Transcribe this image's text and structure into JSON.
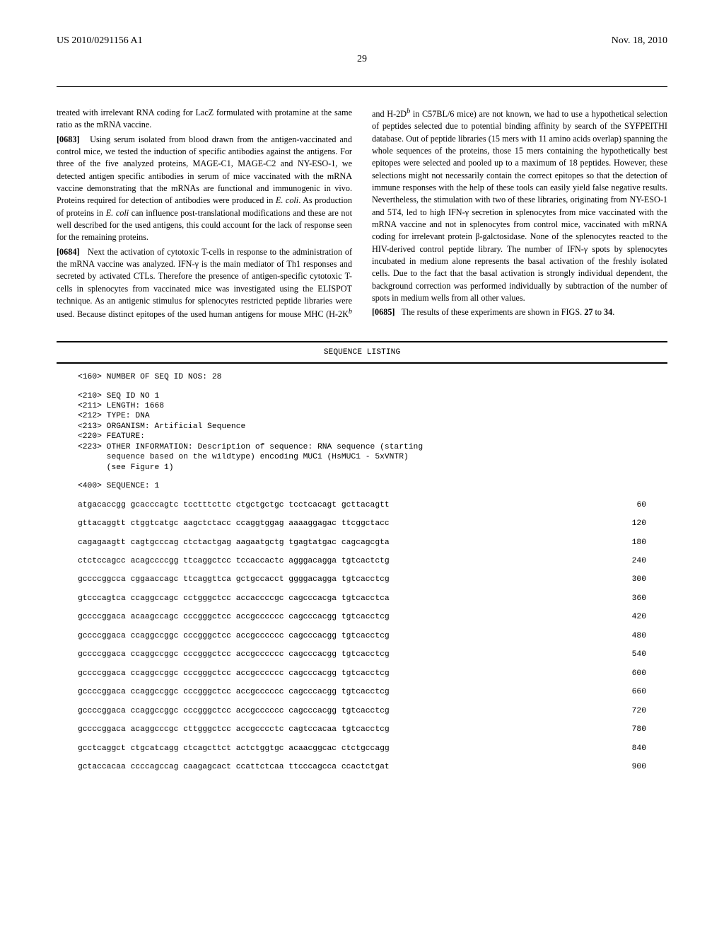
{
  "header": {
    "left": "US 2010/0291156 A1",
    "right": "Nov. 18, 2010",
    "page_number": "29"
  },
  "body": {
    "p0": "treated with irrelevant RNA coding for LacZ formulated with protamine at the same ratio as the mRNA vaccine.",
    "p1_num": "[0683]",
    "p1": "Using serum isolated from blood drawn from the antigen-vaccinated and control mice, we tested the induction of specific antibodies against the antigens. For three of the five analyzed proteins, MAGE-C1, MAGE-C2 and NY-ESO-1, we detected antigen specific antibodies in serum of mice vaccinated with the mRNA vaccine demonstrating that the mRNAs are functional and immunogenic in vivo. Proteins required for detection of antibodies were produced in ",
    "p1b": ". As production of proteins in ",
    "p1c": " can influence post-translational modifications and these are not well described for the used antigens, this could account for the lack of response seen for the remaining proteins.",
    "ecoli": "E. coli",
    "p2_num": "[0684]",
    "p2": "Next the activation of cytotoxic T-cells in response to the administration of the mRNA vaccine was analyzed. IFN-γ is the main mediator of Th1 responses and secreted by activated CTLs. Therefore the presence of antigen-specific cytotoxic T-cells in splenocytes from vaccinated mice was investigated using the ELISPOT technique. As an antigenic stimulus for splenocytes restricted peptide libraries were used. Because distinct epitopes of the used human antigens for mouse MHC (H-2K",
    "p2_sup1": "b",
    "p2b": " and H-2D",
    "p2_sup2": "b",
    "p2c": " in C57BL/6 mice) are not known, we had to use a hypothetical selection of peptides selected due to potential binding affinity by search of the SYFPEITHI database. Out of peptide libraries (15 mers with 11 amino acids overlap) spanning the whole sequences of the proteins, those 15 mers containing the hypothetically best epitopes were selected and pooled up to a maximum of 18 peptides. However, these selections might not necessarily contain the correct epitopes so that the detection of immune responses with the help of these tools can easily yield false negative results. Nevertheless, the stimulation with two of these libraries, originating from NY-ESO-1 and 5T4, led to high IFN-γ secretion in splenocytes from mice vaccinated with the mRNA vaccine and not in splenocytes from control mice, vaccinated with mRNA coding for irrelevant protein β-galctosidase. None of the splenocytes reacted to the HIV-derived control peptide library. The number of IFN-γ spots by splenocytes incubated in medium alone represents the basal activation of the freshly isolated cells. Due to the fact that the basal activation is strongly individual dependent, the background correction was performed individually by subtraction of the number of spots in medium wells from all other values.",
    "p3_num": "[0685]",
    "p3a": "The results of these experiments are shown in FIGS. ",
    "p3b": "27",
    "p3c": " to ",
    "p3d": "34",
    "p3e": "."
  },
  "seq": {
    "title": "SEQUENCE LISTING",
    "h160": "<160> NUMBER OF SEQ ID NOS: 28",
    "h210": "<210> SEQ ID NO 1",
    "h211": "<211> LENGTH: 1668",
    "h212": "<212> TYPE: DNA",
    "h213": "<213> ORGANISM: Artificial Sequence",
    "h220": "<220> FEATURE:",
    "h223": "<223> OTHER INFORMATION: Description of sequence: RNA sequence (starting",
    "h223b": "      sequence based on the wildtype) encoding MUC1 (HsMUC1 - 5xVNTR)",
    "h223c": "      (see Figure 1)",
    "h400": "<400> SEQUENCE: 1",
    "rows": [
      {
        "seq": "atgacaccgg gcacccagtc tcctttcttc ctgctgctgc tcctcacagt gcttacagtt",
        "n": "60"
      },
      {
        "seq": "gttacaggtt ctggtcatgc aagctctacc ccaggtggag aaaaggagac ttcggctacc",
        "n": "120"
      },
      {
        "seq": "cagagaagtt cagtgcccag ctctactgag aagaatgctg tgagtatgac cagcagcgta",
        "n": "180"
      },
      {
        "seq": "ctctccagcc acagccccgg ttcaggctcc tccaccactc agggacagga tgtcactctg",
        "n": "240"
      },
      {
        "seq": "gccccggcca cggaaccagc ttcaggttca gctgccacct ggggacagga tgtcacctcg",
        "n": "300"
      },
      {
        "seq": "gtcccagtca ccaggccagc cctgggctcc accaccccgc cagcccacga tgtcacctca",
        "n": "360"
      },
      {
        "seq": "gccccggaca acaagccagc cccgggctcc accgcccccc cagcccacgg tgtcacctcg",
        "n": "420"
      },
      {
        "seq": "gccccggaca ccaggccggc cccgggctcc accgcccccc cagcccacgg tgtcacctcg",
        "n": "480"
      },
      {
        "seq": "gccccggaca ccaggccggc cccgggctcc accgcccccc cagcccacgg tgtcacctcg",
        "n": "540"
      },
      {
        "seq": "gccccggaca ccaggccggc cccgggctcc accgcccccc cagcccacgg tgtcacctcg",
        "n": "600"
      },
      {
        "seq": "gccccggaca ccaggccggc cccgggctcc accgcccccc cagcccacgg tgtcacctcg",
        "n": "660"
      },
      {
        "seq": "gccccggaca ccaggccggc cccgggctcc accgcccccc cagcccacgg tgtcacctcg",
        "n": "720"
      },
      {
        "seq": "gccccggaca acaggcccgc cttgggctcc accgcccctc cagtccacaa tgtcacctcg",
        "n": "780"
      },
      {
        "seq": "gcctcaggct ctgcatcagg ctcagcttct actctggtgc acaacggcac ctctgccagg",
        "n": "840"
      },
      {
        "seq": "gctaccacaa ccccagccag caagagcact ccattctcaa ttcccagcca ccactctgat",
        "n": "900"
      }
    ]
  }
}
